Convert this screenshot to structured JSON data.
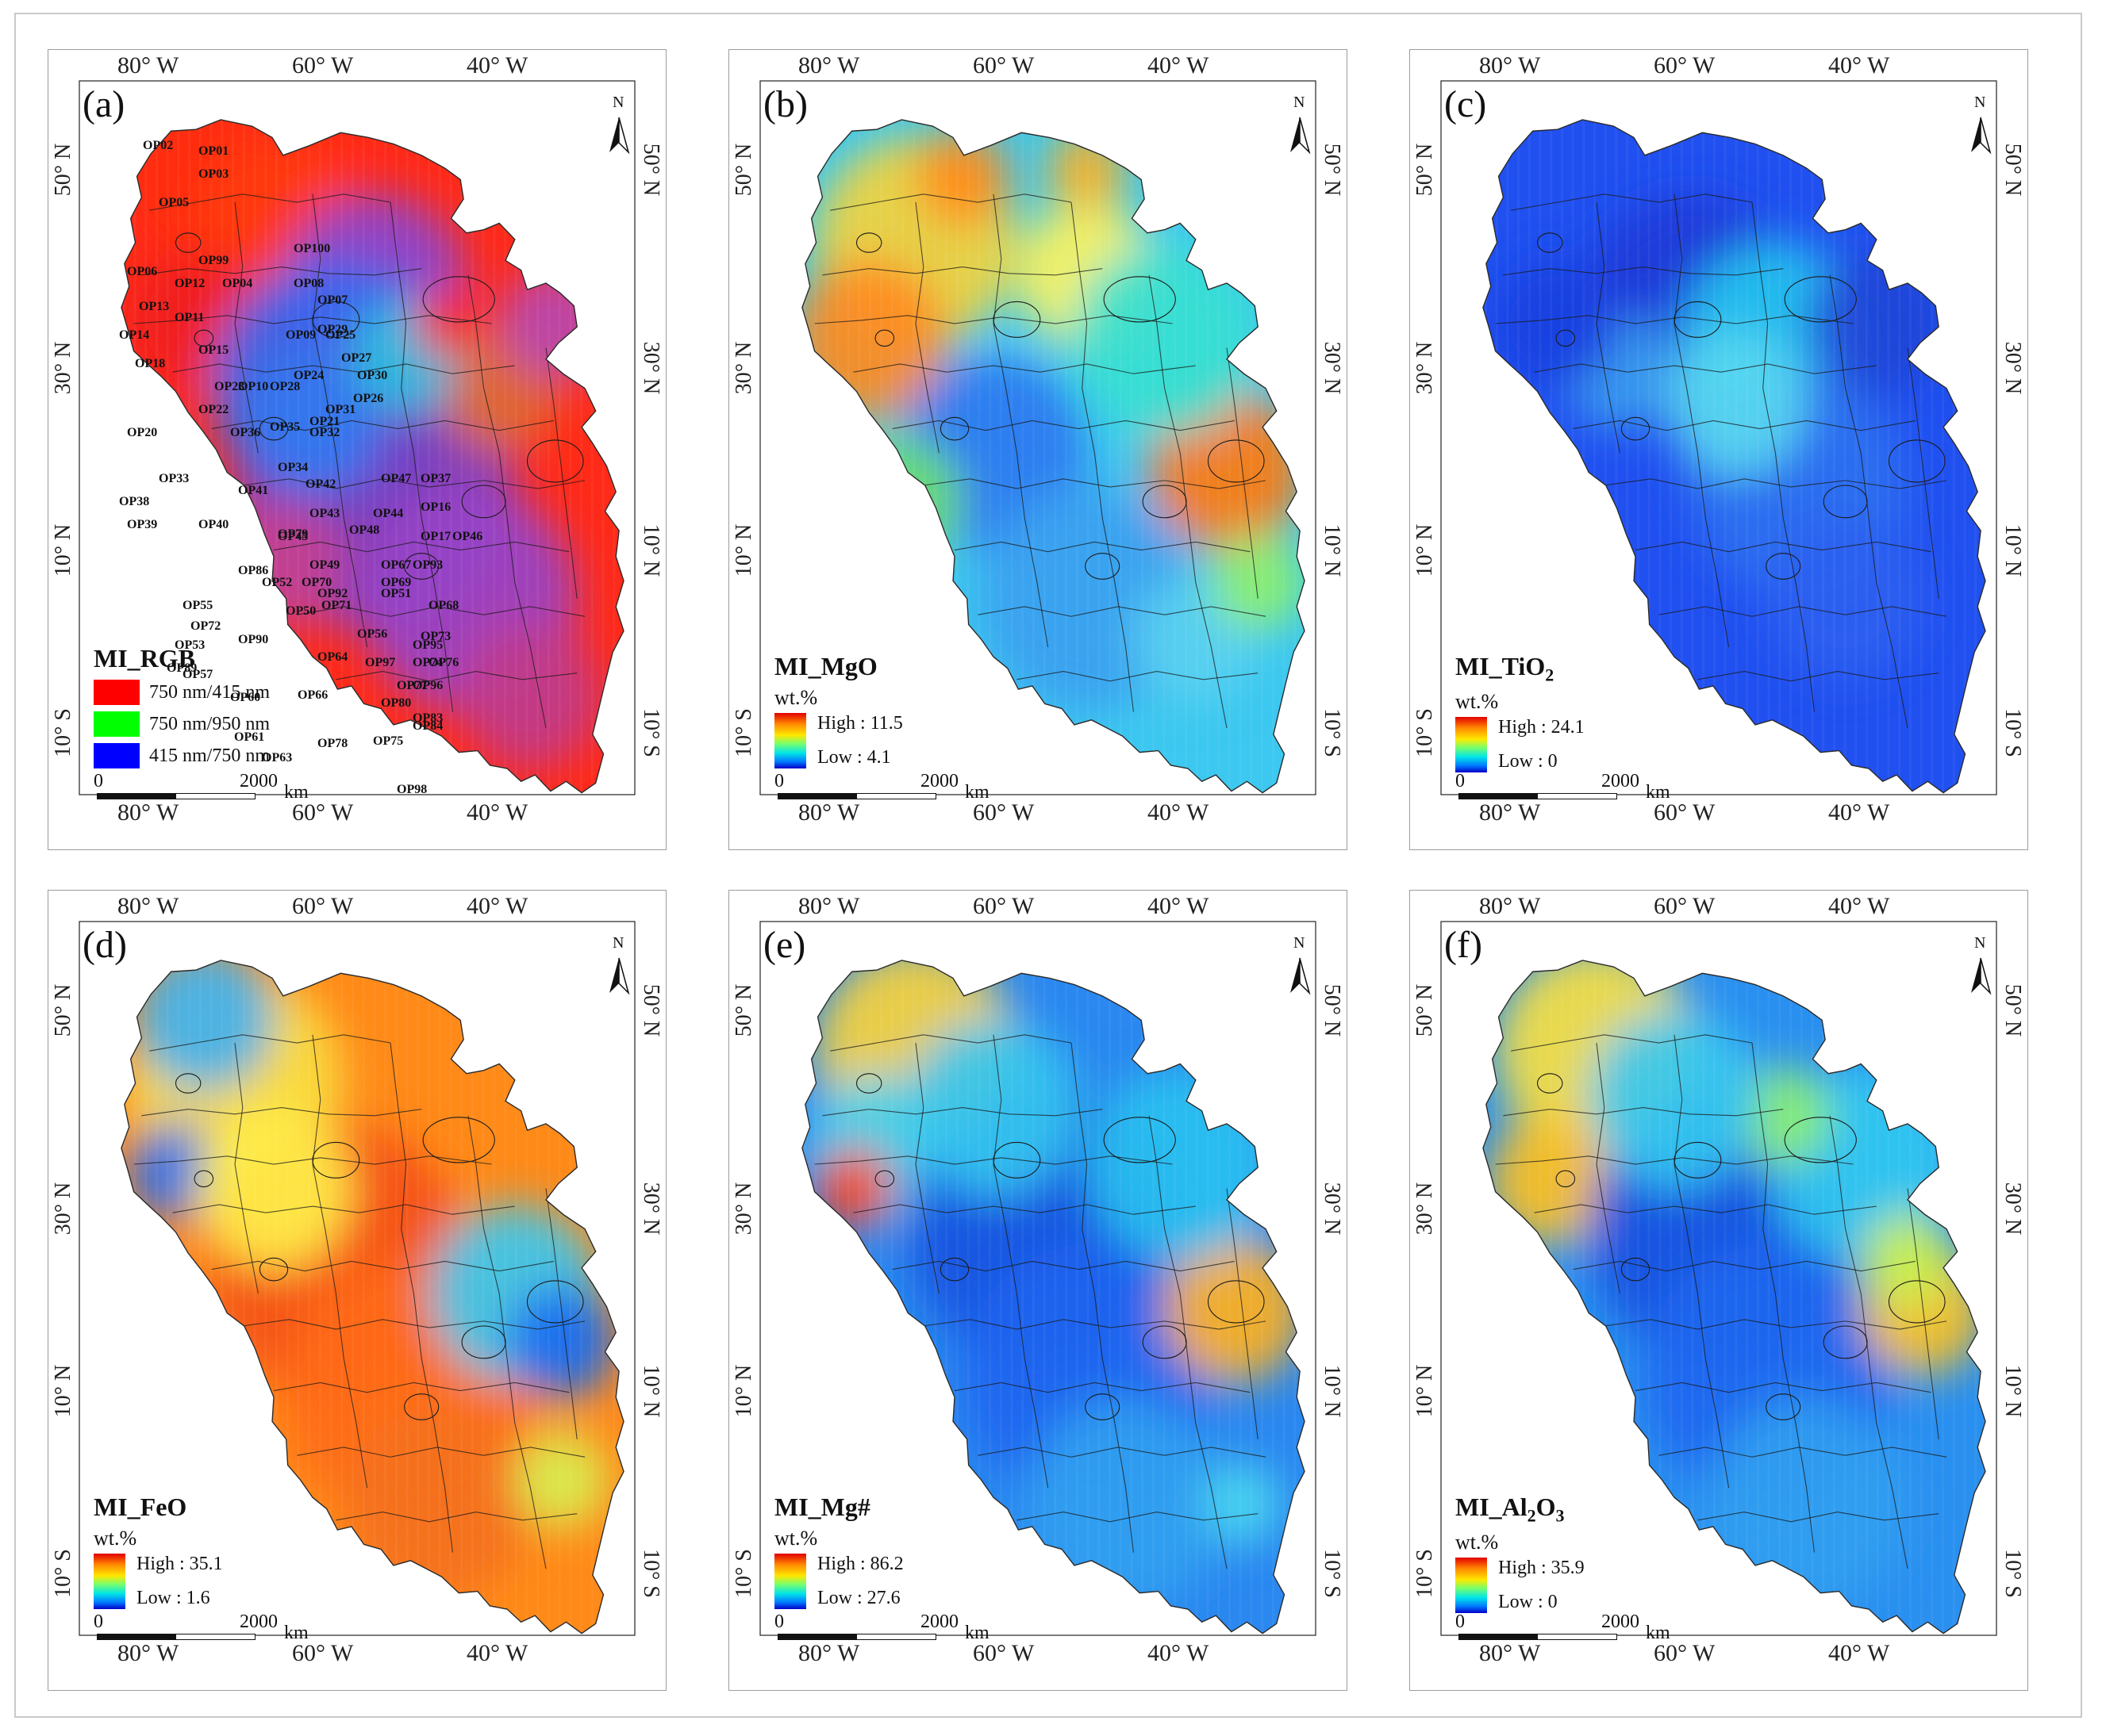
{
  "graticule": {
    "lon": [
      "80° W",
      "60° W",
      "40° W"
    ],
    "lat": [
      "50° N",
      "30° N",
      "10° N",
      "10° S"
    ]
  },
  "north_label": "N",
  "scale": {
    "zero": "0",
    "max": "2000",
    "unit": "km"
  },
  "unit": "wt.%",
  "rgb_legend": {
    "title": "MI_RGB",
    "items": [
      {
        "label": "750 nm/415 nm",
        "color": "#ff0000"
      },
      {
        "label": "750 nm/950 nm",
        "color": "#00ff00"
      },
      {
        "label": "415 nm/750 nm",
        "color": "#0000ff"
      }
    ]
  },
  "panels": [
    {
      "id": "a",
      "label": "(a)",
      "kind": "rgb"
    },
    {
      "id": "b",
      "label": "(b)",
      "kind": "ramp",
      "title": "MI_MgO",
      "high": "High : 11.5",
      "low": "Low : 4.1"
    },
    {
      "id": "c",
      "label": "(c)",
      "kind": "ramp",
      "title": "MI_TiO",
      "title_sub": "2",
      "high": "High : 24.1",
      "low": "Low : 0"
    },
    {
      "id": "d",
      "label": "(d)",
      "kind": "ramp",
      "title": "MI_FeO",
      "high": "High : 35.1",
      "low": "Low : 1.6"
    },
    {
      "id": "e",
      "label": "(e)",
      "kind": "ramp",
      "title": "MI_Mg#",
      "high": "High : 86.2",
      "low": "Low : 27.6"
    },
    {
      "id": "f",
      "label": "(f)",
      "kind": "ramp",
      "title": "MI_Al",
      "title_sub": "2",
      "title_tail": "O",
      "title_sub2": "3",
      "high": "High : 35.9",
      "low": "Low : 0"
    }
  ],
  "unit_labels": [
    "OP01",
    "OP02",
    "OP03",
    "OP05",
    "OP04",
    "OP06",
    "OP07",
    "OP08",
    "OP09",
    "OP10",
    "OP11",
    "OP12",
    "OP13",
    "OP14",
    "OP15",
    "OP16",
    "OP17",
    "OP18",
    "OP20",
    "OP21",
    "OP22",
    "OP23",
    "OP24",
    "OP25",
    "OP26",
    "OP27",
    "OP28",
    "OP29",
    "OP30",
    "OP31",
    "OP32",
    "OP33",
    "OP34",
    "OP35",
    "OP36",
    "OP37",
    "OP38",
    "OP39",
    "OP40",
    "OP41",
    "OP42",
    "OP43",
    "OP44",
    "OP45",
    "OP46",
    "OP47",
    "OP48",
    "OP49",
    "OP50",
    "OP51",
    "OP52",
    "OP53",
    "OP55",
    "OP56",
    "OP57",
    "OP60",
    "OP61",
    "OP63",
    "OP64",
    "OP66",
    "OP67",
    "OP68",
    "OP69",
    "OP70",
    "OP71",
    "OP72",
    "OP73",
    "OP74",
    "OP75",
    "OP76",
    "OP77",
    "OP78",
    "OP79",
    "OP80",
    "OP83",
    "OP84",
    "OP86",
    "OP89",
    "OP90",
    "OP92",
    "OP93",
    "OP95",
    "OP96",
    "OP97",
    "OP98",
    "OP99",
    "OP100"
  ]
}
